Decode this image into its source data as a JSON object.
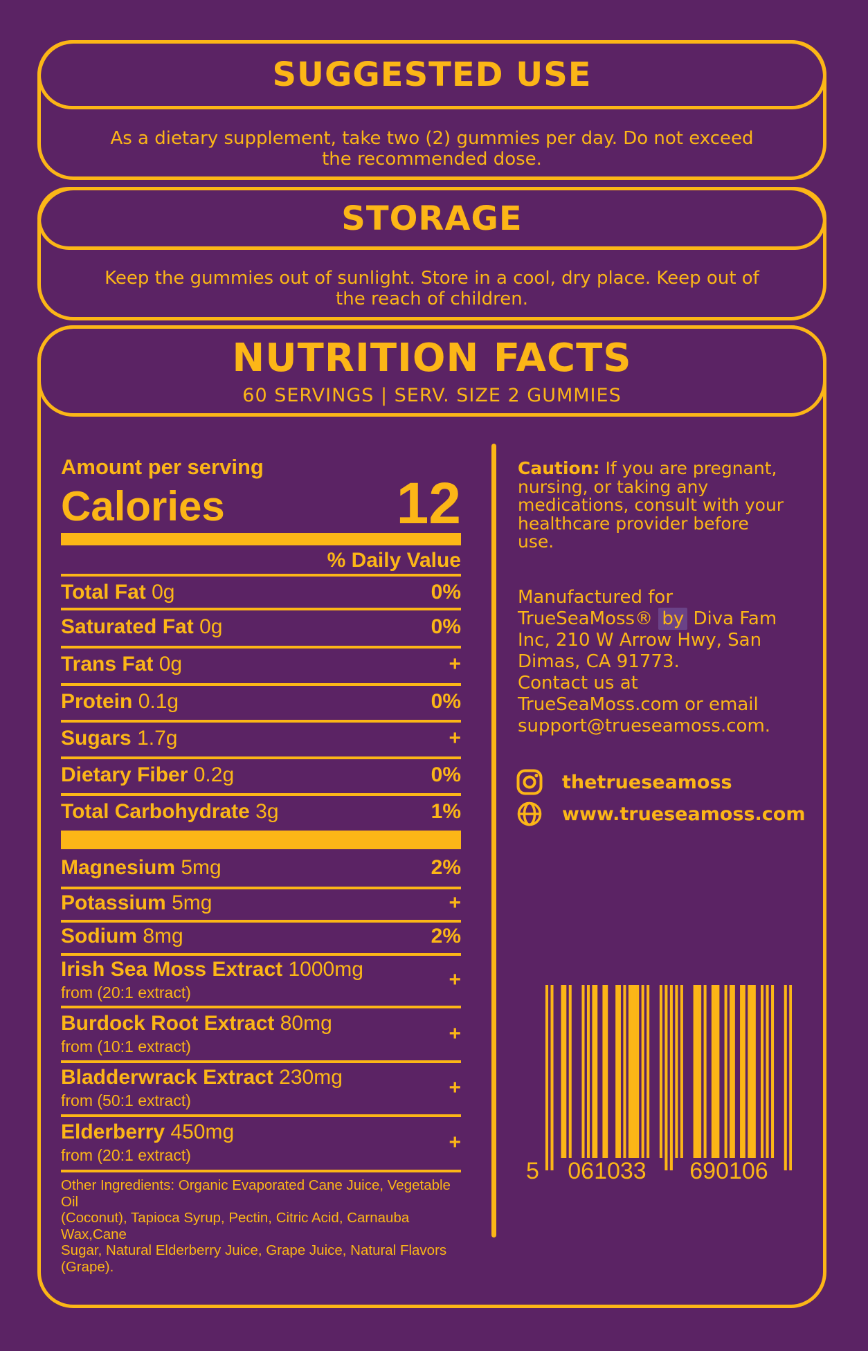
{
  "colors": {
    "background": "#5b2364",
    "accent": "#fcb617",
    "highlight": "#6a4287"
  },
  "sections": {
    "suggested_use": {
      "title": "SUGGESTED USE",
      "body": "As a dietary supplement, take two (2) gummies per day. Do not exceed\nthe recommended dose."
    },
    "storage": {
      "title": "STORAGE",
      "body": "Keep the gummies out of sunlight. Store in a cool, dry place. Keep out of\nthe reach of children."
    },
    "nutrition": {
      "title": "NUTRITION FACTS",
      "subtitle": "60 SERVINGS | SERV. SIZE 2 GUMMIES"
    }
  },
  "nutrition_panel": {
    "amount_label": "Amount per serving",
    "calories_label": "Calories",
    "calories_value": "12",
    "daily_value_header": "% Daily Value",
    "rows": [
      {
        "name": "Total Fat",
        "amount": "0g",
        "dv": "0%"
      },
      {
        "name": "Saturated Fat",
        "amount": "0g",
        "dv": "0%"
      },
      {
        "name": "Trans Fat",
        "amount": "0g",
        "dv": "+"
      },
      {
        "name": "Protein",
        "amount": "0.1g",
        "dv": "0%"
      },
      {
        "name": "Sugars",
        "amount": "1.7g",
        "dv": "+"
      },
      {
        "name": "Dietary Fiber",
        "amount": "0.2g",
        "dv": "0%"
      },
      {
        "name": "Total Carbohydrate",
        "amount": "3g",
        "dv": "1%"
      },
      {
        "name": "Magnesium",
        "amount": "5mg",
        "dv": "2%"
      },
      {
        "name": "Potassium",
        "amount": "5mg",
        "dv": "+"
      },
      {
        "name": "Sodium",
        "amount": "8mg",
        "dv": "2%"
      },
      {
        "name": "Irish Sea Moss Extract",
        "amount": "1000mg",
        "sub": "from (20:1 extract)",
        "dv": "+"
      },
      {
        "name": "Burdock Root Extract",
        "amount": "80mg",
        "sub": "from (10:1 extract)",
        "dv": "+"
      },
      {
        "name": "Bladderwrack Extract",
        "amount": "230mg",
        "sub": "from (50:1 extract)",
        "dv": "+"
      },
      {
        "name": "Elderberry",
        "amount": "450mg",
        "sub": "from (20:1 extract)",
        "dv": "+"
      }
    ],
    "other_ingredients": "Other Ingredients: Organic Evaporated Cane Juice, Vegetable Oil\n(Coconut), Tapioca Syrup, Pectin, Citric Acid, Carnauba Wax,Cane\nSugar, Natural Elderberry Juice, Grape Juice, Natural Flavors (Grape)."
  },
  "info_panel": {
    "caution_label": "Caution:",
    "caution_text": " If you are pregnant,\nnursing, or taking any\nmedications, consult with your\nhealthcare provider before\nuse.",
    "manufactured_before": "Manufactured for\nTrueSeaMoss® ",
    "manufactured_highlight": "by",
    "manufactured_after": " Diva Fam\nInc, 210 W Arrow Hwy, San\nDimas, CA 91773.\nContact us at\nTrueSeaMoss.com or email\nsupport@trueseamoss.com.",
    "instagram_handle": "thetrueseamoss",
    "website": "www.trueseamoss.com"
  },
  "barcode": {
    "digit_first": "5",
    "digits_left": "061033",
    "digits_right": "690106",
    "pattern": "10100011010000101011001100011010111101010000101010101000011101001110010110011011100101010000101"
  }
}
